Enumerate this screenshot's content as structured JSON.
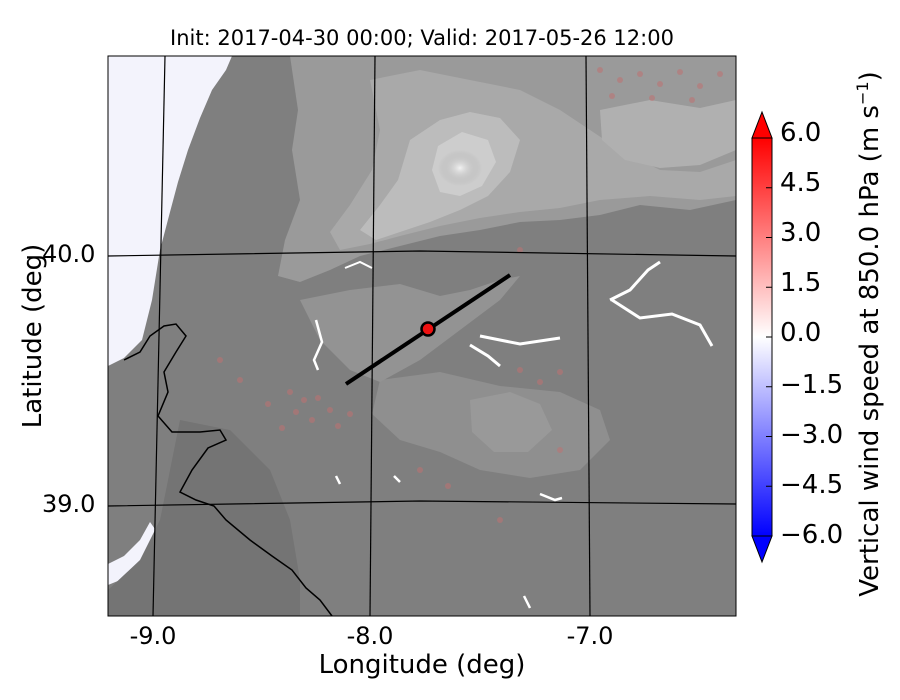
{
  "figure": {
    "title": "Init: 2017-04-30 00:00; Valid: 2017-05-26 12:00",
    "xlabel": "Longitude (deg)",
    "ylabel": "Latitude (deg)",
    "x_ticks": [
      "-9.0",
      "-8.0",
      "-7.0"
    ],
    "y_ticks": [
      "40.0",
      "39.0"
    ],
    "colorbar": {
      "label_main": "Vertical wind speed at 850.0 hPa (m s",
      "label_exp": "−1",
      "label_close": ")",
      "ticks": [
        "6.0",
        "4.5",
        "3.0",
        "1.5",
        "0.0",
        "−1.5",
        "−3.0",
        "−4.5",
        "−6.0"
      ],
      "range": [
        -6.0,
        6.0
      ],
      "colormap": "blue-white-red (bwr)",
      "extend": "both"
    }
  },
  "map": {
    "lon_range": [
      -9.25,
      -6.35
    ],
    "lat_range": [
      38.45,
      40.75
    ],
    "grid_lons": [
      -9.0,
      -8.0,
      -7.0
    ],
    "grid_lats": [
      40.0,
      39.0
    ],
    "terrain_colormap": "grayscale",
    "ocean_color": "#f3f3fc",
    "transect": {
      "start": [
        -8.1,
        39.49
      ],
      "end": [
        -7.35,
        39.93
      ],
      "color": "#000000"
    },
    "marker": {
      "lon": -7.75,
      "lat": 39.7,
      "color": "#ee1111"
    }
  },
  "chart_data": {
    "type": "heatmap",
    "title": "Init: 2017-04-30 00:00; Valid: 2017-05-26 12:00",
    "xlabel": "Longitude (deg)",
    "ylabel": "Latitude (deg)",
    "xlim": [
      -9.25,
      -6.35
    ],
    "ylim": [
      38.45,
      40.75
    ],
    "x_tick_labels": [
      "-9.0",
      "-8.0",
      "-7.0"
    ],
    "y_tick_labels": [
      "40.0",
      "39.0"
    ],
    "colorbar_range": [
      -6.0,
      6.0
    ],
    "colorbar_ticks": [
      6.0,
      4.5,
      3.0,
      1.5,
      0.0,
      -1.5,
      -3.0,
      -4.5,
      -6.0
    ]
  }
}
